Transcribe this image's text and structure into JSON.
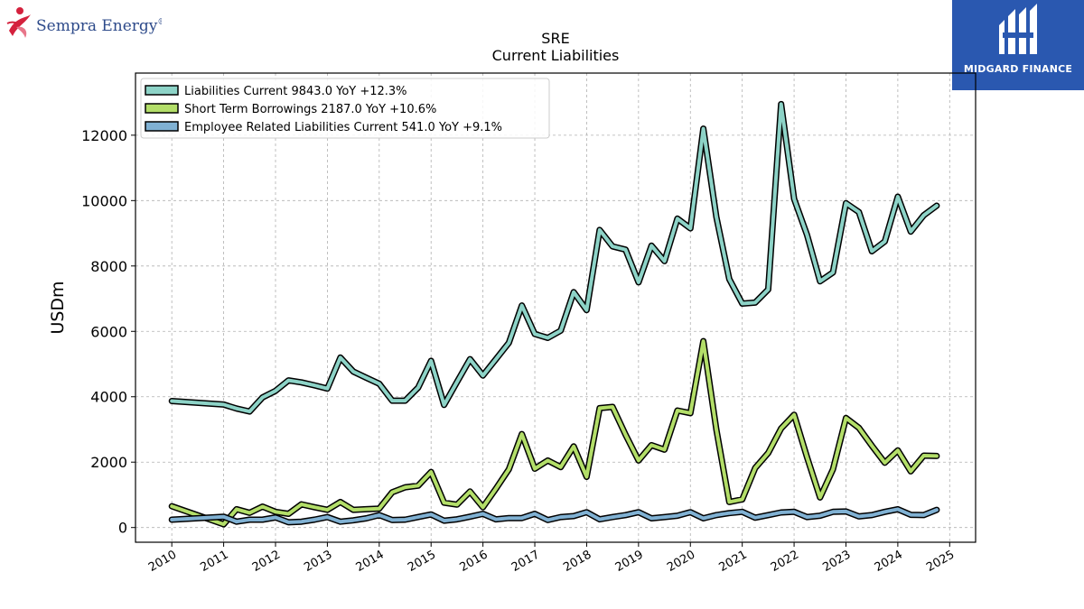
{
  "logos": {
    "left_brand": "Sempra Energy",
    "left_brand_mark": "®",
    "right_brand": "MIDGARD FINANCE"
  },
  "chart_data": {
    "type": "line",
    "title": "SRE",
    "subtitle": "Current  Liabilities",
    "xlabel": "",
    "ylabel": "USDm",
    "xlim": [
      2009.3,
      2025.5
    ],
    "ylim": [
      -450,
      13900
    ],
    "x_ticks": [
      2010,
      2011,
      2012,
      2013,
      2014,
      2015,
      2016,
      2017,
      2018,
      2019,
      2020,
      2021,
      2022,
      2023,
      2024,
      2025
    ],
    "y_ticks": [
      0,
      2000,
      4000,
      6000,
      8000,
      10000,
      12000
    ],
    "grid": true,
    "legend_position": "top-left",
    "series": [
      {
        "name": "Liabilities Current",
        "legend_label": "Liabilities Current  9843.0 YoY +12.3%",
        "color": "#8dd3c7",
        "x": [
          2010.0,
          2011.0,
          2011.25,
          2011.5,
          2011.75,
          2012.0,
          2012.25,
          2012.5,
          2012.75,
          2013.0,
          2013.25,
          2013.5,
          2013.75,
          2014.0,
          2014.25,
          2014.5,
          2014.75,
          2015.0,
          2015.25,
          2015.5,
          2015.75,
          2016.0,
          2016.25,
          2016.5,
          2016.75,
          2017.0,
          2017.25,
          2017.5,
          2017.75,
          2018.0,
          2018.25,
          2018.5,
          2018.75,
          2019.0,
          2019.25,
          2019.5,
          2019.75,
          2020.0,
          2020.25,
          2020.5,
          2020.75,
          2021.0,
          2021.25,
          2021.5,
          2021.75,
          2022.0,
          2022.25,
          2022.5,
          2022.75,
          2023.0,
          2023.25,
          2023.5,
          2023.75,
          2024.0,
          2024.25,
          2024.5,
          2024.75
        ],
        "y": [
          3870,
          3760,
          3640,
          3550,
          3980,
          4180,
          4500,
          4440,
          4350,
          4250,
          5200,
          4770,
          4580,
          4400,
          3880,
          3880,
          4280,
          5100,
          3750,
          4450,
          5150,
          4650,
          5150,
          5650,
          6790,
          5920,
          5800,
          6020,
          7200,
          6650,
          9100,
          8600,
          8500,
          7500,
          8620,
          8150,
          9450,
          9150,
          12200,
          9500,
          7600,
          6850,
          6880,
          7280,
          12950,
          10050,
          8950,
          7530,
          7800,
          9920,
          9650,
          8450,
          8750,
          10120,
          9050,
          9550,
          9843
        ]
      },
      {
        "name": "Short Term Borrowings",
        "legend_label": "Short Term Borrowings  2187.0 YoY +10.6%",
        "color": "#b3de69",
        "x": [
          2010.0,
          2011.0,
          2011.25,
          2011.5,
          2011.75,
          2012.0,
          2012.25,
          2012.5,
          2012.75,
          2013.0,
          2013.25,
          2013.5,
          2013.75,
          2014.0,
          2014.25,
          2014.5,
          2014.75,
          2015.0,
          2015.25,
          2015.5,
          2015.75,
          2016.0,
          2016.25,
          2016.5,
          2016.75,
          2017.0,
          2017.25,
          2017.5,
          2017.75,
          2018.0,
          2018.25,
          2018.5,
          2018.75,
          2019.0,
          2019.25,
          2019.5,
          2019.75,
          2020.0,
          2020.25,
          2020.5,
          2020.75,
          2021.0,
          2021.25,
          2021.5,
          2021.75,
          2022.0,
          2022.25,
          2022.5,
          2022.75,
          2023.0,
          2023.25,
          2023.5,
          2023.75,
          2024.0,
          2024.25,
          2024.5,
          2024.75
        ],
        "y": [
          650,
          100,
          560,
          450,
          640,
          480,
          420,
          710,
          620,
          540,
          780,
          540,
          560,
          580,
          1080,
          1230,
          1280,
          1700,
          760,
          700,
          1100,
          620,
          1190,
          1780,
          2860,
          1800,
          2050,
          1850,
          2480,
          1550,
          3650,
          3690,
          2840,
          2050,
          2520,
          2380,
          3580,
          3500,
          5700,
          3000,
          780,
          860,
          1820,
          2280,
          3030,
          3450,
          2150,
          920,
          1780,
          3350,
          3050,
          2500,
          1980,
          2360,
          1720,
          2200,
          2187
        ]
      },
      {
        "name": "Employee Related Liabilities Current",
        "legend_label": "Employee Related Liabilities Current  541.0 YoY +9.1%",
        "color": "#80b1d3",
        "x": [
          2010.0,
          2011.0,
          2011.25,
          2011.5,
          2011.75,
          2012.0,
          2012.25,
          2012.5,
          2012.75,
          2013.0,
          2013.25,
          2013.5,
          2013.75,
          2014.0,
          2014.25,
          2014.5,
          2014.75,
          2015.0,
          2015.25,
          2015.5,
          2015.75,
          2016.0,
          2016.25,
          2016.5,
          2016.75,
          2017.0,
          2017.25,
          2017.5,
          2017.75,
          2018.0,
          2018.25,
          2018.5,
          2018.75,
          2019.0,
          2019.25,
          2019.5,
          2019.75,
          2020.0,
          2020.25,
          2020.5,
          2020.75,
          2021.0,
          2021.25,
          2021.5,
          2021.75,
          2022.0,
          2022.25,
          2022.5,
          2022.75,
          2023.0,
          2023.25,
          2023.5,
          2023.75,
          2024.0,
          2024.25,
          2024.5,
          2024.75
        ],
        "y": [
          240,
          330,
          180,
          240,
          240,
          310,
          160,
          180,
          240,
          320,
          180,
          220,
          280,
          380,
          230,
          240,
          320,
          400,
          210,
          250,
          330,
          420,
          250,
          290,
          290,
          420,
          230,
          320,
          350,
          470,
          250,
          320,
          380,
          470,
          280,
          320,
          360,
          470,
          280,
          380,
          440,
          480,
          300,
          380,
          460,
          480,
          320,
          360,
          480,
          490,
          340,
          380,
          480,
          560,
          390,
          380,
          541
        ]
      }
    ]
  }
}
